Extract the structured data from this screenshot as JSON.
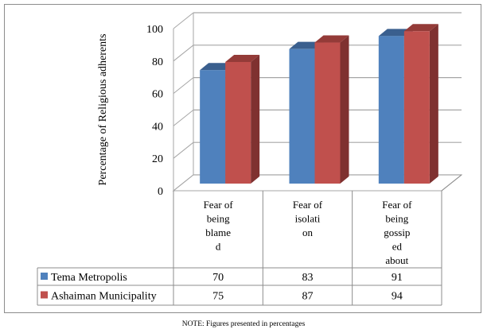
{
  "chart_data": {
    "type": "bar",
    "style": "3d-clustered-column-with-data-table",
    "title": "",
    "xlabel": "",
    "ylabel": "Percentage of Religious adherents",
    "ylim": [
      0,
      100
    ],
    "yticks": [
      0,
      20,
      40,
      60,
      80,
      100
    ],
    "grid": true,
    "categories": [
      [
        "Fear of",
        "being",
        "blame",
        "d"
      ],
      [
        "Fear of",
        "isolati",
        "on"
      ],
      [
        "Fear of",
        "being",
        "gossip",
        "ed",
        "about"
      ]
    ],
    "series": [
      {
        "name": "Tema Metropolis",
        "values": [
          70,
          83,
          91
        ],
        "color": "#4f81bd",
        "top_color": "#3a5f8e"
      },
      {
        "name": "Ashaiman Municipality",
        "values": [
          75,
          87,
          94
        ],
        "color": "#c0504d",
        "top_color": "#943b38",
        "side_color": "#7f3130"
      }
    ],
    "legend": "data-table-left"
  },
  "note": "NOTE: Figures presented in percentages"
}
